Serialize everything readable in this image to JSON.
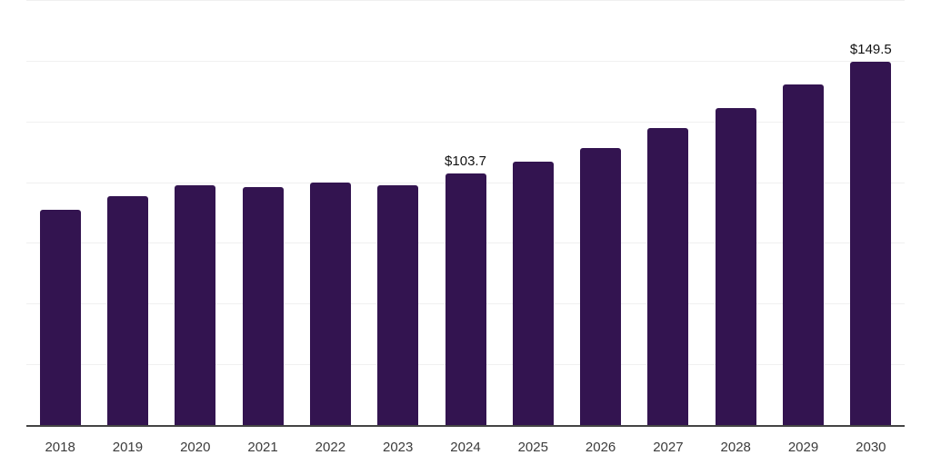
{
  "chart_data": {
    "type": "bar",
    "title": "",
    "xlabel": "",
    "ylabel": "",
    "categories": [
      "2018",
      "2019",
      "2020",
      "2021",
      "2022",
      "2023",
      "2024",
      "2025",
      "2026",
      "2027",
      "2028",
      "2029",
      "2030"
    ],
    "values": [
      88.6,
      94.2,
      98.9,
      97.9,
      99.8,
      98.8,
      103.7,
      108.4,
      114.2,
      122.3,
      130.5,
      140.2,
      149.5
    ],
    "labeled_points": [
      {
        "category": "2024",
        "label": "$103.7"
      },
      {
        "category": "2030",
        "label": "$149.5"
      }
    ],
    "ylim": [
      0,
      175
    ],
    "gridline_step": 25,
    "grid": "horizontal",
    "legend": "none",
    "colors": {
      "bar": "#331450",
      "grid": "#f0f0f0",
      "axis": "#444444",
      "tick_label": "#3c3c3c",
      "data_label": "#111111",
      "background": "#ffffff"
    }
  }
}
